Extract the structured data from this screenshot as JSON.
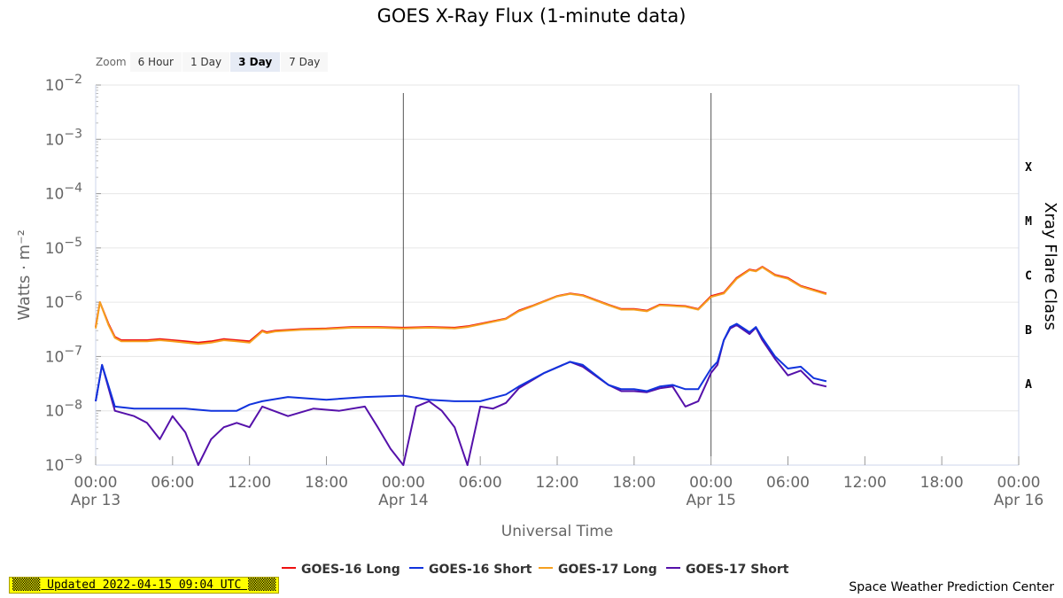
{
  "chart_data": {
    "type": "line",
    "title": "GOES X-Ray Flux (1-minute data)",
    "xlabel": "Universal Time",
    "ylabel": "Watts · m⁻²",
    "y2label": "Xray Flare Class",
    "yscale": "log",
    "ylim": [
      1e-09,
      0.01
    ],
    "xlim": [
      "2022-04-13 00:00",
      "2022-04-16 00:00"
    ],
    "grid": true,
    "legend_position": "bottom",
    "y_ticks": [
      "10−2",
      "10−3",
      "10−4",
      "10−5",
      "10−6",
      "10−7",
      "10−8",
      "10−9"
    ],
    "x_ticks": [
      {
        "time": "00:00",
        "date": "Apr 13"
      },
      {
        "time": "06:00",
        "date": ""
      },
      {
        "time": "12:00",
        "date": ""
      },
      {
        "time": "18:00",
        "date": ""
      },
      {
        "time": "00:00",
        "date": "Apr 14"
      },
      {
        "time": "06:00",
        "date": ""
      },
      {
        "time": "12:00",
        "date": ""
      },
      {
        "time": "18:00",
        "date": ""
      },
      {
        "time": "00:00",
        "date": "Apr 15"
      },
      {
        "time": "06:00",
        "date": ""
      },
      {
        "time": "12:00",
        "date": ""
      },
      {
        "time": "18:00",
        "date": ""
      },
      {
        "time": "00:00",
        "date": "Apr 16"
      }
    ],
    "flare_classes": [
      "X",
      "M",
      "C",
      "B",
      "A"
    ],
    "flare_class_thresholds": [
      0.0001,
      1e-05,
      1e-06,
      1e-07,
      1e-08
    ],
    "day_markers": [
      "2022-04-14 00:00",
      "2022-04-15 00:00"
    ],
    "series": [
      {
        "name": "GOES-16 Long",
        "color": "#ee1111",
        "x": [
          "2022-04-13 00:00",
          "2022-04-13 00:20",
          "2022-04-13 01:00",
          "2022-04-13 01:30",
          "2022-04-13 02:00",
          "2022-04-13 03:00",
          "2022-04-13 04:00",
          "2022-04-13 05:00",
          "2022-04-13 06:00",
          "2022-04-13 07:00",
          "2022-04-13 08:00",
          "2022-04-13 09:00",
          "2022-04-13 10:00",
          "2022-04-13 11:00",
          "2022-04-13 12:00",
          "2022-04-13 13:00",
          "2022-04-13 13:20",
          "2022-04-13 14:00",
          "2022-04-13 16:00",
          "2022-04-13 18:00",
          "2022-04-13 20:00",
          "2022-04-13 22:00",
          "2022-04-14 00:00",
          "2022-04-14 02:00",
          "2022-04-14 04:00",
          "2022-04-14 05:00",
          "2022-04-14 06:00",
          "2022-04-14 08:00",
          "2022-04-14 09:00",
          "2022-04-14 10:00",
          "2022-04-14 12:00",
          "2022-04-14 13:00",
          "2022-04-14 14:00",
          "2022-04-14 16:00",
          "2022-04-14 17:00",
          "2022-04-14 18:00",
          "2022-04-14 19:00",
          "2022-04-14 20:00",
          "2022-04-14 22:00",
          "2022-04-14 23:00",
          "2022-04-15 00:00",
          "2022-04-15 01:00",
          "2022-04-15 02:00",
          "2022-04-15 03:00",
          "2022-04-15 03:30",
          "2022-04-15 04:00",
          "2022-04-15 05:00",
          "2022-04-15 06:00",
          "2022-04-15 07:00",
          "2022-04-15 08:00",
          "2022-04-15 09:00"
        ],
        "y": [
          3.5e-07,
          1e-06,
          4e-07,
          2.3e-07,
          2e-07,
          2e-07,
          2e-07,
          2.1e-07,
          2e-07,
          1.9e-07,
          1.8e-07,
          1.9e-07,
          2.1e-07,
          2e-07,
          1.9e-07,
          3e-07,
          2.8e-07,
          3e-07,
          3.2e-07,
          3.3e-07,
          3.5e-07,
          3.5e-07,
          3.4e-07,
          3.5e-07,
          3.4e-07,
          3.6e-07,
          4e-07,
          5e-07,
          7e-07,
          8.5e-07,
          1.3e-06,
          1.45e-06,
          1.35e-06,
          9e-07,
          7.5e-07,
          7.5e-07,
          7e-07,
          9e-07,
          8.5e-07,
          7.5e-07,
          1.3e-06,
          1.5e-06,
          2.8e-06,
          4e-06,
          3.8e-06,
          4.5e-06,
          3.2e-06,
          2.8e-06,
          2e-06,
          1.7e-06,
          1.45e-06
        ]
      },
      {
        "name": "GOES-16 Short",
        "color": "#1133dd",
        "x": [
          "2022-04-13 00:00",
          "2022-04-13 00:30",
          "2022-04-13 01:30",
          "2022-04-13 03:00",
          "2022-04-13 05:00",
          "2022-04-13 07:00",
          "2022-04-13 09:00",
          "2022-04-13 11:00",
          "2022-04-13 12:00",
          "2022-04-13 13:00",
          "2022-04-13 15:00",
          "2022-04-13 18:00",
          "2022-04-13 21:00",
          "2022-04-14 00:00",
          "2022-04-14 02:00",
          "2022-04-14 04:00",
          "2022-04-14 06:00",
          "2022-04-14 08:00",
          "2022-04-14 09:00",
          "2022-04-14 11:00",
          "2022-04-14 13:00",
          "2022-04-14 14:00",
          "2022-04-14 16:00",
          "2022-04-14 17:00",
          "2022-04-14 18:00",
          "2022-04-14 19:00",
          "2022-04-14 20:00",
          "2022-04-14 21:00",
          "2022-04-14 22:00",
          "2022-04-14 23:00",
          "2022-04-15 00:00",
          "2022-04-15 00:30",
          "2022-04-15 01:00",
          "2022-04-15 01:30",
          "2022-04-15 02:00",
          "2022-04-15 03:00",
          "2022-04-15 03:30",
          "2022-04-15 04:00",
          "2022-04-15 05:00",
          "2022-04-15 06:00",
          "2022-04-15 07:00",
          "2022-04-15 08:00",
          "2022-04-15 09:00"
        ],
        "y": [
          1.5e-08,
          7e-08,
          1.2e-08,
          1.1e-08,
          1.1e-08,
          1.1e-08,
          1e-08,
          1e-08,
          1.3e-08,
          1.5e-08,
          1.8e-08,
          1.6e-08,
          1.8e-08,
          1.9e-08,
          1.6e-08,
          1.5e-08,
          1.5e-08,
          2e-08,
          2.8e-08,
          5e-08,
          8e-08,
          7e-08,
          3e-08,
          2.5e-08,
          2.5e-08,
          2.3e-08,
          2.8e-08,
          3e-08,
          2.5e-08,
          2.5e-08,
          6e-08,
          8e-08,
          2e-07,
          3.5e-07,
          4e-07,
          2.8e-07,
          3.5e-07,
          2.2e-07,
          1e-07,
          6e-08,
          6.5e-08,
          4e-08,
          3.5e-08
        ]
      },
      {
        "name": "GOES-17 Long",
        "color": "#f5a020",
        "x": [
          "2022-04-13 00:00",
          "2022-04-13 00:20",
          "2022-04-13 01:00",
          "2022-04-13 01:30",
          "2022-04-13 02:00",
          "2022-04-13 03:00",
          "2022-04-13 04:00",
          "2022-04-13 05:00",
          "2022-04-13 06:00",
          "2022-04-13 07:00",
          "2022-04-13 08:00",
          "2022-04-13 09:00",
          "2022-04-13 10:00",
          "2022-04-13 11:00",
          "2022-04-13 12:00",
          "2022-04-13 13:00",
          "2022-04-13 13:20",
          "2022-04-13 14:00",
          "2022-04-13 16:00",
          "2022-04-13 18:00",
          "2022-04-13 20:00",
          "2022-04-13 22:00",
          "2022-04-14 00:00",
          "2022-04-14 02:00",
          "2022-04-14 04:00",
          "2022-04-14 05:00",
          "2022-04-14 06:00",
          "2022-04-14 08:00",
          "2022-04-14 09:00",
          "2022-04-14 10:00",
          "2022-04-14 12:00",
          "2022-04-14 13:00",
          "2022-04-14 14:00",
          "2022-04-14 16:00",
          "2022-04-14 17:00",
          "2022-04-14 18:00",
          "2022-04-14 19:00",
          "2022-04-14 20:00",
          "2022-04-14 22:00",
          "2022-04-14 23:00",
          "2022-04-15 00:00",
          "2022-04-15 01:00",
          "2022-04-15 02:00",
          "2022-04-15 03:00",
          "2022-04-15 03:30",
          "2022-04-15 04:00",
          "2022-04-15 05:00",
          "2022-04-15 06:00",
          "2022-04-15 07:00",
          "2022-04-15 08:00",
          "2022-04-15 09:00"
        ],
        "y": [
          3.3e-07,
          1e-06,
          3.8e-07,
          2.2e-07,
          1.9e-07,
          1.9e-07,
          1.9e-07,
          2e-07,
          1.9e-07,
          1.8e-07,
          1.7e-07,
          1.8e-07,
          2e-07,
          1.9e-07,
          1.8e-07,
          2.9e-07,
          2.7e-07,
          2.9e-07,
          3.1e-07,
          3.2e-07,
          3.4e-07,
          3.4e-07,
          3.3e-07,
          3.4e-07,
          3.3e-07,
          3.5e-07,
          3.9e-07,
          4.9e-07,
          6.8e-07,
          8.3e-07,
          1.28e-06,
          1.42e-06,
          1.32e-06,
          8.8e-07,
          7.3e-07,
          7.3e-07,
          6.8e-07,
          8.8e-07,
          8.3e-07,
          7.3e-07,
          1.25e-06,
          1.45e-06,
          2.7e-06,
          3.9e-06,
          3.7e-06,
          4.4e-06,
          3.1e-06,
          2.7e-06,
          1.95e-06,
          1.65e-06,
          1.4e-06
        ]
      },
      {
        "name": "GOES-17 Short",
        "color": "#5511aa",
        "x": [
          "2022-04-13 00:00",
          "2022-04-13 00:30",
          "2022-04-13 01:30",
          "2022-04-13 03:00",
          "2022-04-13 04:00",
          "2022-04-13 05:00",
          "2022-04-13 06:00",
          "2022-04-13 07:00",
          "2022-04-13 08:00",
          "2022-04-13 09:00",
          "2022-04-13 10:00",
          "2022-04-13 11:00",
          "2022-04-13 12:00",
          "2022-04-13 13:00",
          "2022-04-13 15:00",
          "2022-04-13 17:00",
          "2022-04-13 19:00",
          "2022-04-13 21:00",
          "2022-04-13 22:00",
          "2022-04-13 23:00",
          "2022-04-14 00:00",
          "2022-04-14 01:00",
          "2022-04-14 02:00",
          "2022-04-14 03:00",
          "2022-04-14 04:00",
          "2022-04-14 05:00",
          "2022-04-14 06:00",
          "2022-04-14 07:00",
          "2022-04-14 08:00",
          "2022-04-14 09:00",
          "2022-04-14 11:00",
          "2022-04-14 13:00",
          "2022-04-14 14:00",
          "2022-04-14 16:00",
          "2022-04-14 17:00",
          "2022-04-14 18:00",
          "2022-04-14 19:00",
          "2022-04-14 20:00",
          "2022-04-14 21:00",
          "2022-04-14 22:00",
          "2022-04-14 23:00",
          "2022-04-15 00:00",
          "2022-04-15 00:30",
          "2022-04-15 01:00",
          "2022-04-15 01:30",
          "2022-04-15 02:00",
          "2022-04-15 03:00",
          "2022-04-15 03:30",
          "2022-04-15 04:00",
          "2022-04-15 05:00",
          "2022-04-15 06:00",
          "2022-04-15 07:00",
          "2022-04-15 08:00",
          "2022-04-15 09:00"
        ],
        "y": [
          1.5e-08,
          7e-08,
          1e-08,
          8e-09,
          6e-09,
          3e-09,
          8e-09,
          4e-09,
          1e-09,
          3e-09,
          5e-09,
          6e-09,
          5e-09,
          1.2e-08,
          8e-09,
          1.1e-08,
          1e-08,
          1.2e-08,
          5e-09,
          2e-09,
          1e-09,
          1.2e-08,
          1.5e-08,
          1e-08,
          5e-09,
          1e-09,
          1.2e-08,
          1.1e-08,
          1.4e-08,
          2.6e-08,
          5e-08,
          8e-08,
          6.5e-08,
          3e-08,
          2.3e-08,
          2.3e-08,
          2.2e-08,
          2.6e-08,
          2.8e-08,
          1.2e-08,
          1.5e-08,
          5e-08,
          7e-08,
          2e-07,
          3.3e-07,
          3.8e-07,
          2.6e-07,
          3.4e-07,
          2e-07,
          9e-08,
          4.5e-08,
          5.5e-08,
          3.2e-08,
          2.8e-08
        ]
      }
    ]
  },
  "zoom": {
    "label": "Zoom",
    "buttons": [
      "6 Hour",
      "1 Day",
      "3 Day",
      "7 Day"
    ],
    "active": "3 Day"
  },
  "footer": {
    "updated_text": "▒▒▒▒ Updated 2022-04-15 09:04 UTC ▒▒▒▒",
    "credit": "Space Weather Prediction Center"
  }
}
